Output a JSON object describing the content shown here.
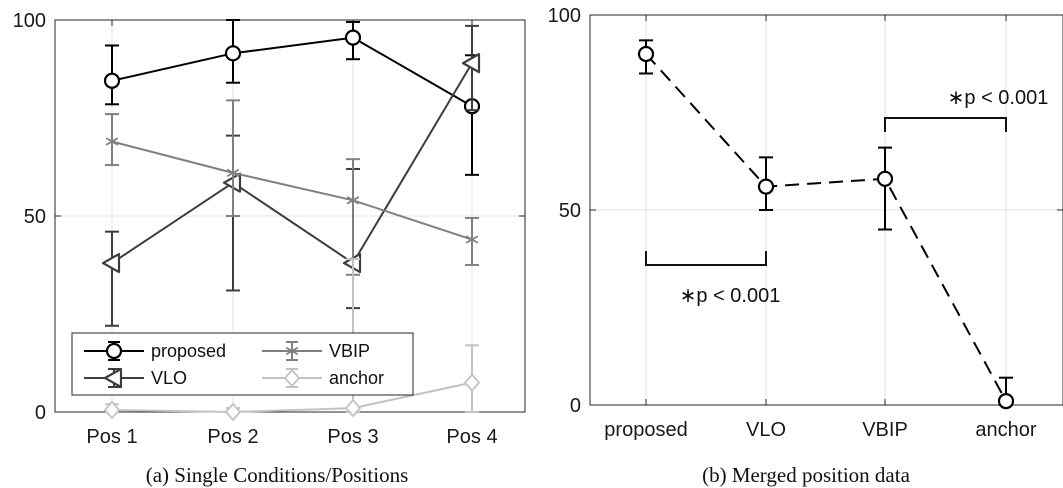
{
  "chart_data": [
    {
      "type": "line",
      "caption": "(a) Single Conditions/Positions",
      "categories": [
        "Pos 1",
        "Pos 2",
        "Pos 3",
        "Pos 4"
      ],
      "ylim": [
        0,
        100
      ],
      "yticks": [
        "0",
        "50",
        "100"
      ],
      "grid": true,
      "legend_position": "bottom-left",
      "series": [
        {
          "name": "proposed",
          "marker": "circle",
          "color": "#000000",
          "values": [
            84.5,
            91.5,
            95.5,
            78
          ],
          "err_low": [
            78.5,
            84,
            90,
            60.5
          ],
          "err_high": [
            93.5,
            100,
            99.5,
            91
          ]
        },
        {
          "name": "VLO",
          "marker": "triangle-left",
          "color": "#3d3d3d",
          "values": [
            38,
            58.5,
            38,
            89
          ],
          "err_low": [
            22,
            31,
            26.5,
            77
          ],
          "err_high": [
            46,
            70.5,
            62,
            98.5
          ]
        },
        {
          "name": "VBIP",
          "marker": "asterisk",
          "color": "#808080",
          "values": [
            69,
            61,
            54,
            44
          ],
          "err_low": [
            63,
            50,
            35,
            37.5
          ],
          "err_high": [
            76,
            79.5,
            64.5,
            49.5
          ]
        },
        {
          "name": "anchor",
          "marker": "diamond",
          "color": "#c2c2c2",
          "values": [
            0.5,
            0,
            1,
            7.5
          ],
          "err_low": [
            0,
            0,
            0,
            0
          ],
          "err_high": [
            2,
            1,
            39,
            17
          ]
        }
      ]
    },
    {
      "type": "line",
      "caption": "(b) Merged position data",
      "categories": [
        "proposed",
        "VLO",
        "VBIP",
        "anchor"
      ],
      "ylim": [
        0,
        100
      ],
      "yticks": [
        "0",
        "50",
        "100"
      ],
      "grid": true,
      "series": [
        {
          "marker": "circle",
          "style": "dashed",
          "color": "#000000",
          "values": [
            90,
            56,
            58,
            1
          ],
          "err_low": [
            85,
            50,
            45,
            0
          ],
          "err_high": [
            93.5,
            63.5,
            66,
            7
          ]
        }
      ],
      "annotations": [
        {
          "text": "∗p < 0.001",
          "between": [
            "proposed",
            "VLO"
          ],
          "placement": "below"
        },
        {
          "text": "∗p < 0.001",
          "between": [
            "VBIP",
            "anchor"
          ],
          "placement": "above"
        }
      ]
    }
  ]
}
